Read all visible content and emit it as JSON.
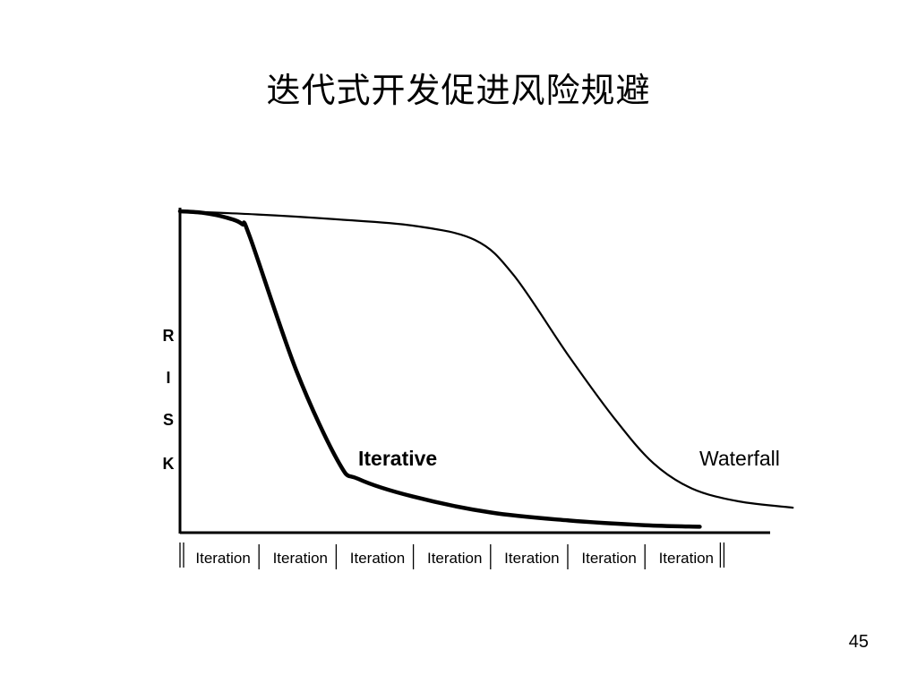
{
  "slide": {
    "title": "迭代式开发促进风险规避",
    "page_number": "45"
  },
  "colors": {
    "line": "#000000",
    "background": "#ffffff"
  },
  "chart_data": {
    "type": "line",
    "title": "迭代式开发促进风险规避",
    "ylabel": "RISK",
    "ylabel_letters": [
      "R",
      "I",
      "S",
      "K"
    ],
    "xlabel": "",
    "x_ticks": [
      "Iteration",
      "Iteration",
      "Iteration",
      "Iteration",
      "Iteration",
      "Iteration",
      "Iteration"
    ],
    "xlim": [
      0,
      8
    ],
    "ylim": [
      0,
      100
    ],
    "grid": false,
    "legend": "none",
    "series": [
      {
        "name": "Iterative",
        "stroke_weight": "bold",
        "points": [
          [
            0,
            100
          ],
          [
            0.3,
            99.5
          ],
          [
            0.6,
            98
          ],
          [
            0.8,
            96
          ],
          [
            0.9,
            92
          ],
          [
            1.5,
            50
          ],
          [
            2.05,
            21
          ],
          [
            2.3,
            16
          ],
          [
            3,
            10.5
          ],
          [
            4,
            5.5
          ],
          [
            5,
            3
          ],
          [
            6,
            1.5
          ],
          [
            6.7,
            1
          ]
        ]
      },
      {
        "name": "Waterfall",
        "stroke_weight": "regular",
        "points": [
          [
            0,
            100
          ],
          [
            1,
            99
          ],
          [
            2,
            97.5
          ],
          [
            3,
            95.5
          ],
          [
            3.8,
            91
          ],
          [
            4.3,
            80
          ],
          [
            5,
            55
          ],
          [
            5.6,
            35
          ],
          [
            6.1,
            21
          ],
          [
            6.6,
            13
          ],
          [
            7.2,
            9
          ],
          [
            7.9,
            7
          ]
        ]
      }
    ]
  }
}
